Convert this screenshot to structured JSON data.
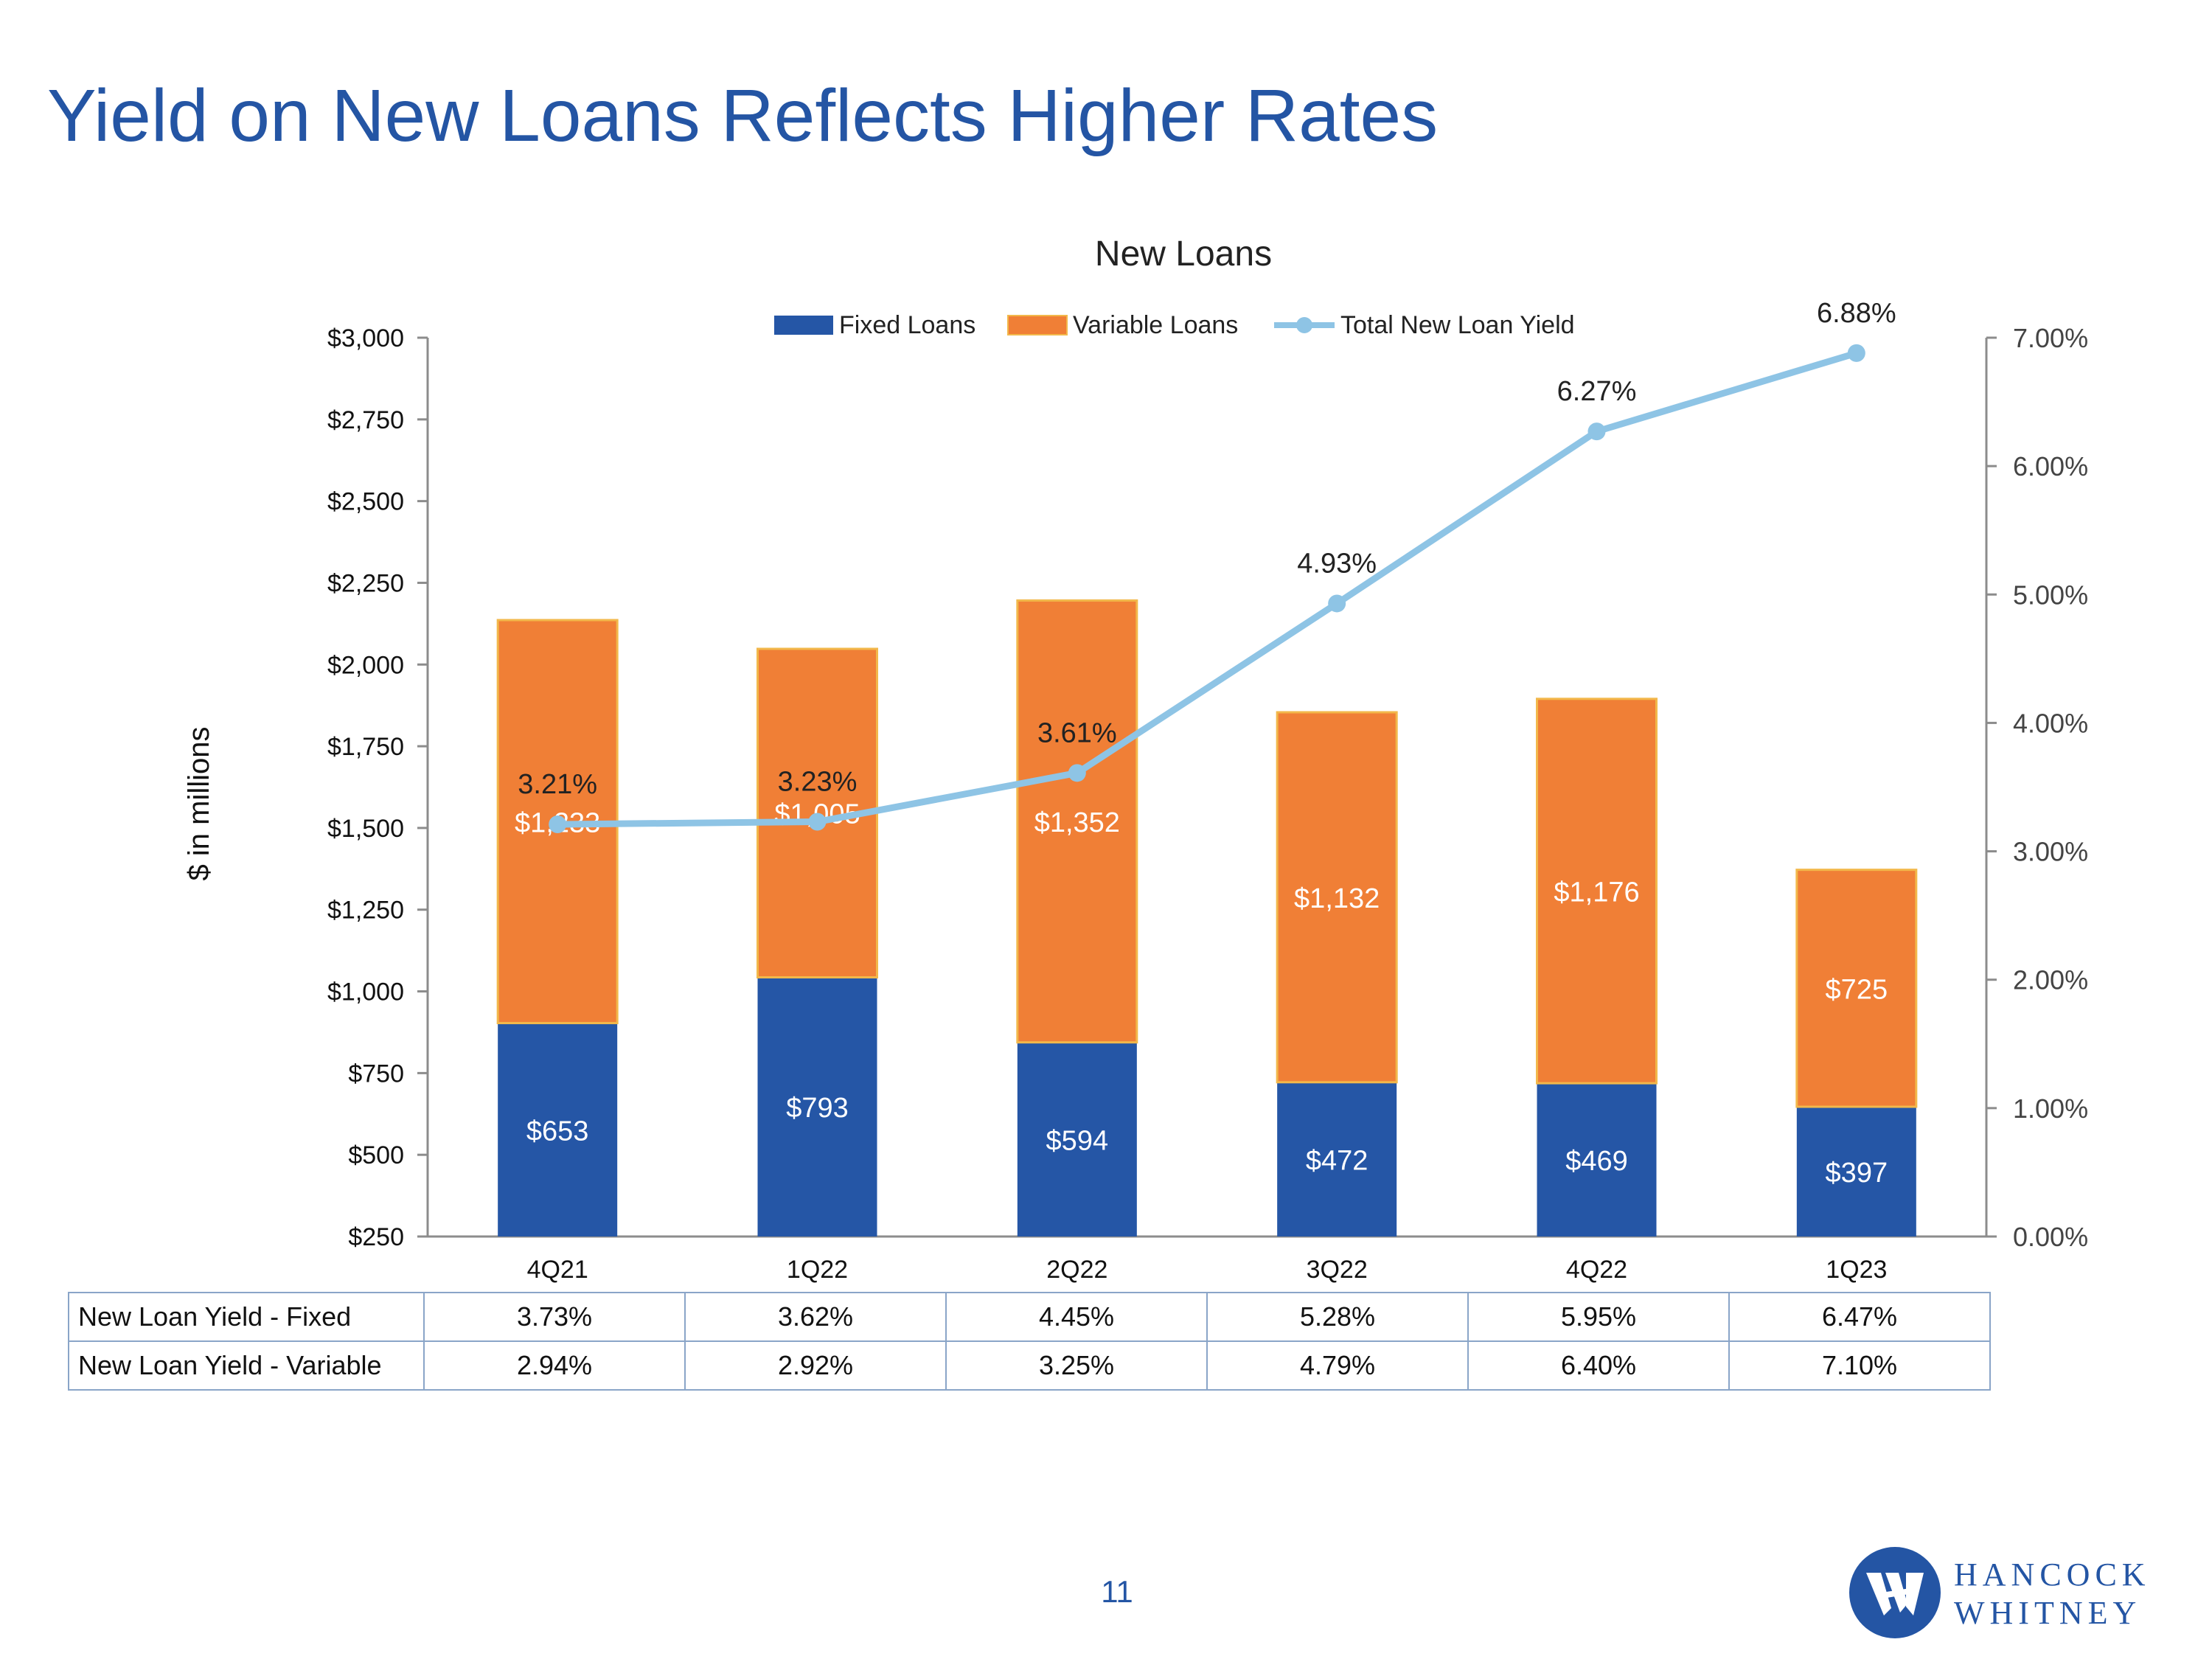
{
  "page": {
    "title": "Yield on New Loans Reflects Higher Rates",
    "page_number": "11",
    "logo": {
      "line1": "HANCOCK",
      "line2": "WHITNEY"
    }
  },
  "colors": {
    "title": "#2455a4",
    "fixed": "#2556a6",
    "variable": "#f07f36",
    "variable_border": "#f2b84b",
    "line": "#8ec4e5",
    "axis": "#8c8c8c"
  },
  "chart_data": {
    "type": "bar",
    "title": "New Loans",
    "ylabel": "$ in millions",
    "xlabel": "",
    "categories": [
      "4Q21",
      "1Q22",
      "2Q22",
      "3Q22",
      "4Q22",
      "1Q23"
    ],
    "ylim": [
      250,
      3000
    ],
    "yticks": [
      "$250",
      "$500",
      "$750",
      "$1,000",
      "$1,250",
      "$1,500",
      "$1,750",
      "$2,000",
      "$2,250",
      "$2,500",
      "$2,750",
      "$3,000"
    ],
    "y2lim": [
      0,
      7
    ],
    "y2ticks": [
      "0.00%",
      "1.00%",
      "2.00%",
      "3.00%",
      "4.00%",
      "5.00%",
      "6.00%",
      "7.00%"
    ],
    "legend_position": "top",
    "series": [
      {
        "name": "Fixed Loans",
        "kind": "bar",
        "values": [
          653,
          793,
          594,
          472,
          469,
          397
        ],
        "labels": [
          "$653",
          "$793",
          "$594",
          "$472",
          "$469",
          "$397"
        ]
      },
      {
        "name": "Variable Loans",
        "kind": "bar",
        "values": [
          1233,
          1005,
          1352,
          1132,
          1176,
          725
        ],
        "labels": [
          "$1,233",
          "$1,005",
          "$1,352",
          "$1,132",
          "$1,176",
          "$725"
        ]
      },
      {
        "name": "Total New Loan Yield",
        "kind": "line",
        "axis": "right",
        "values": [
          3.21,
          3.23,
          3.61,
          4.93,
          6.27,
          6.88
        ],
        "labels": [
          "3.21%",
          "3.23%",
          "3.61%",
          "4.93%",
          "6.27%",
          "6.88%"
        ]
      }
    ]
  },
  "table": {
    "rows": [
      {
        "label": "New Loan Yield - Fixed",
        "values": [
          "3.73%",
          "3.62%",
          "4.45%",
          "5.28%",
          "5.95%",
          "6.47%"
        ]
      },
      {
        "label": "New Loan Yield - Variable",
        "values": [
          "2.94%",
          "2.92%",
          "3.25%",
          "4.79%",
          "6.40%",
          "7.10%"
        ]
      }
    ]
  }
}
